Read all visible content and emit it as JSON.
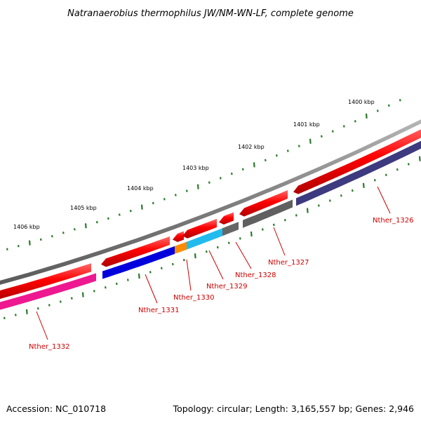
{
  "title": "Natranaerobius thermophilus JW/NM-WN-LF, complete genome",
  "footer": {
    "accession": "Accession: NC_010718",
    "summary": "Topology: circular; Length: 3,165,557 bp; Genes: 2,946"
  },
  "colors": {
    "backbone": "#7f7f7f",
    "forward_cds": "#ff0000",
    "tick": "#2a7a2a",
    "label": "#cc0000"
  },
  "kbp_labels": [
    "1400 kbp",
    "1401 kbp",
    "1402 kbp",
    "1403 kbp",
    "1404 kbp",
    "1405 kbp",
    "1406 kbp"
  ],
  "genes": [
    {
      "name": "Nther_1326",
      "color": "#3d3a80"
    },
    {
      "name": "Nther_1327",
      "color": "#606060"
    },
    {
      "name": "Nther_1328",
      "color": "#666666"
    },
    {
      "name": "Nther_1329",
      "color": "#22bbee"
    },
    {
      "name": "Nther_1330",
      "color": "#ff8c00"
    },
    {
      "name": "Nther_1331",
      "color": "#0000dd"
    },
    {
      "name": "Nther_1332",
      "color": "#ee1890"
    }
  ]
}
